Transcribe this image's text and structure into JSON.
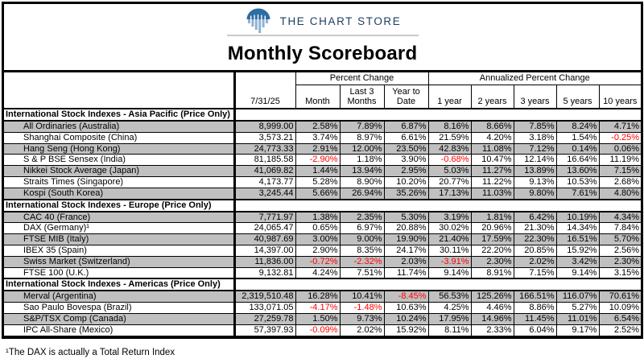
{
  "brand": {
    "name": "THE CHART STORE"
  },
  "title": "Monthly Scoreboard",
  "footnote": "¹The DAX is actually a Total Return Index",
  "colors": {
    "negative_text": "#ff0000",
    "row_shade": "#c0c0c0",
    "logo_blue": "#2e6ca4",
    "logo_light_blue": "#8fb2d4",
    "brand_text": "#1d3c5e",
    "rule_gray": "#c9c9c9"
  },
  "table": {
    "date_label": "7/31/25",
    "group_headers": {
      "percent_change": "Percent Change",
      "annualized": "Annualized Percent Change"
    },
    "sub_columns": {
      "percent_change": [
        "Month",
        "Last 3 Months",
        "Year to Date"
      ],
      "annualized": [
        "1 year",
        "2 years",
        "3 years",
        "5 years",
        "10 years"
      ]
    },
    "groups": [
      {
        "label": "International Stock Indexes - Asia Pacific (Price Only)",
        "rows": [
          {
            "name": "All Ordinaries (Australia)",
            "values": [
              "8,999.00",
              "2.58%",
              "7.89%",
              "6.87%",
              "8.16%",
              "8.66%",
              "7.85%",
              "8.24%",
              "4.71%"
            ]
          },
          {
            "name": "Shanghai Composite (China)",
            "values": [
              "3,573.21",
              "3.74%",
              "8.97%",
              "6.61%",
              "21.59%",
              "4.20%",
              "3.18%",
              "1.54%",
              "-0.25%"
            ]
          },
          {
            "name": "Hang Seng (Hong Kong)",
            "values": [
              "24,773.33",
              "2.91%",
              "12.00%",
              "23.50%",
              "42.83%",
              "11.08%",
              "7.12%",
              "0.14%",
              "0.06%"
            ]
          },
          {
            "name": "S & P BSE Sensex (India)",
            "values": [
              "81,185.58",
              "-2.90%",
              "1.18%",
              "3.90%",
              "-0.68%",
              "10.47%",
              "12.14%",
              "16.64%",
              "11.19%"
            ]
          },
          {
            "name": "Nikkei Stock Average (Japan)",
            "values": [
              "41,069.82",
              "1.44%",
              "13.94%",
              "2.95%",
              "5.03%",
              "11.27%",
              "13.89%",
              "13.60%",
              "7.15%"
            ]
          },
          {
            "name": "Straits Times (Singapore)",
            "values": [
              "4,173.77",
              "5.28%",
              "8.90%",
              "10.20%",
              "20.77%",
              "11.22%",
              "9.13%",
              "10.53%",
              "2.68%"
            ]
          },
          {
            "name": "Kospi (South Korea)",
            "values": [
              "3,245.44",
              "5.66%",
              "26.94%",
              "35.26%",
              "17.13%",
              "11.03%",
              "9.80%",
              "7.61%",
              "4.80%"
            ]
          }
        ]
      },
      {
        "label": "International Stock Indexes - Europe (Price Only)",
        "rows": [
          {
            "name": "CAC 40 (France)",
            "values": [
              "7,771.97",
              "1.38%",
              "2.35%",
              "5.30%",
              "3.19%",
              "1.81%",
              "6.42%",
              "10.19%",
              "4.34%"
            ]
          },
          {
            "name": "DAX (Germany)¹",
            "values": [
              "24,065.47",
              "0.65%",
              "6.97%",
              "20.88%",
              "30.02%",
              "20.96%",
              "21.30%",
              "14.34%",
              "7.84%"
            ]
          },
          {
            "name": "FTSE MIB (Italy)",
            "values": [
              "40,987.69",
              "3.00%",
              "9.00%",
              "19.90%",
              "21.40%",
              "17.59%",
              "22.30%",
              "16.51%",
              "5.70%"
            ]
          },
          {
            "name": "IBEX 35 (Spain)",
            "values": [
              "14,397.00",
              "2.90%",
              "8.35%",
              "24.17%",
              "30.11%",
              "22.20%",
              "20.85%",
              "15.92%",
              "2.56%"
            ]
          },
          {
            "name": "Swiss Market (Switzerland)",
            "values": [
              "11,836.00",
              "-0.72%",
              "-2.32%",
              "2.03%",
              "-3.91%",
              "2.30%",
              "2.02%",
              "3.42%",
              "2.30%"
            ]
          },
          {
            "name": "FTSE 100 (U.K.)",
            "values": [
              "9,132.81",
              "4.24%",
              "7.51%",
              "11.74%",
              "9.14%",
              "8.91%",
              "7.15%",
              "9.14%",
              "3.15%"
            ]
          }
        ]
      },
      {
        "label": "International Stock Indexes - Americas (Price Only)",
        "rows": [
          {
            "name": "Merval (Argentina)",
            "values": [
              "2,319,510.48",
              "16.28%",
              "10.41%",
              "-8.45%",
              "56.53%",
              "125.26%",
              "166.51%",
              "116.07%",
              "70.61%"
            ]
          },
          {
            "name": "Sao Paulo Bovespa (Brazil)",
            "values": [
              "133,071.05",
              "-4.17%",
              "-1.48%",
              "10.63%",
              "4.25%",
              "4.46%",
              "8.86%",
              "5.27%",
              "10.09%"
            ]
          },
          {
            "name": "S&P/TSX Comp (Canada)",
            "values": [
              "27,259.78",
              "1.50%",
              "9.73%",
              "10.24%",
              "17.95%",
              "14.96%",
              "11.45%",
              "11.01%",
              "6.54%"
            ]
          },
          {
            "name": "IPC All-Share (Mexico)",
            "values": [
              "57,397.93",
              "-0.09%",
              "2.02%",
              "15.92%",
              "8.11%",
              "2.33%",
              "6.04%",
              "9.17%",
              "2.52%"
            ]
          }
        ]
      }
    ]
  }
}
